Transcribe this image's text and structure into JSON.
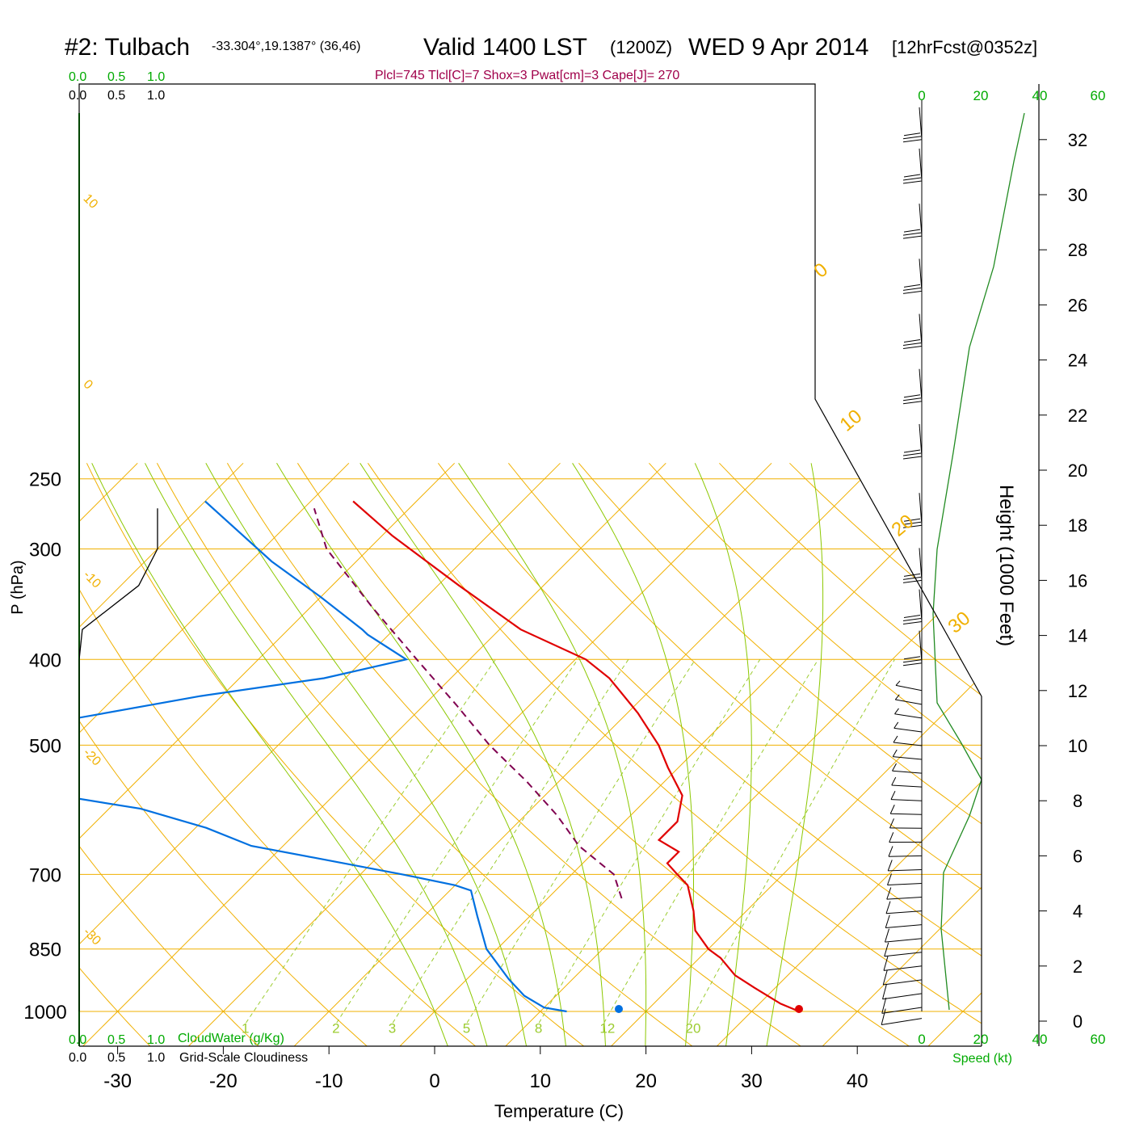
{
  "header": {
    "station": "#2: Tulbach",
    "coords": "-33.304°,19.1387° (36,46)",
    "valid": "Valid 1400 LST",
    "zulu": "(1200Z)",
    "date": "WED 9 Apr 2014",
    "forecast": "[12hrFcst@0352z]",
    "indices": "Plcl=745 Tlcl[C]=7 Shox=3 Pwat[cm]=3 Cape[J]= 270"
  },
  "axes": {
    "xlabel": "Temperature (C)",
    "ylabel": "P (hPa)",
    "height_label": "Height (1000 Feet)",
    "speed_label": "Speed (kt)"
  },
  "scale_labels": {
    "cloudwater_title": "CloudWater (g/Kg)",
    "cloudiness_title": "Grid-Scale Cloudiness",
    "scale_ticks": [
      "0.0",
      "0.5",
      "1.0"
    ]
  },
  "colors": {
    "isotherm": "#f0b000",
    "adiabat": "#8cc800",
    "mixing": "#9ccc30",
    "temperature": "#e00000",
    "dewpoint": "#0070e0",
    "parcel": "#800050",
    "cloud": "#00aa00",
    "indices_text": "#a0004a"
  },
  "chart_data": {
    "type": "line",
    "title": "#2: Tulbach Valid 1400 LST (1200Z) WED 9 Apr 2014 [12hrFcst@0352z]",
    "xlabel": "Temperature (C)",
    "ylabel": "P (hPa)",
    "x_ticks": [
      -30,
      -20,
      -10,
      0,
      10,
      20,
      30,
      40
    ],
    "y_ticks": [
      250,
      300,
      400,
      500,
      700,
      850,
      1000
    ],
    "y_scale": "log",
    "height_ticks_kft": [
      0,
      2,
      4,
      6,
      8,
      10,
      12,
      14,
      16,
      18,
      20,
      22,
      24,
      26,
      28,
      30,
      32
    ],
    "speed_ticks_kt": [
      0,
      20,
      40,
      60
    ],
    "isotherm_labels": [
      -30,
      -20,
      -10,
      0,
      10,
      20,
      30
    ],
    "isotherm_labels_right": [
      0,
      10,
      20,
      30
    ],
    "mixing_ratio_labels": [
      "1",
      "2",
      "3",
      "5",
      "8",
      "12",
      "20"
    ],
    "series": [
      {
        "name": "Temperature",
        "points": [
          [
            34.5,
            1000
          ],
          [
            32,
            980
          ],
          [
            28,
            940
          ],
          [
            25,
            910
          ],
          [
            22,
            870
          ],
          [
            20,
            850
          ],
          [
            17,
            810
          ],
          [
            15,
            770
          ],
          [
            12,
            720
          ],
          [
            10,
            700
          ],
          [
            8,
            680
          ],
          [
            8,
            660
          ],
          [
            5,
            640
          ],
          [
            5,
            610
          ],
          [
            3,
            570
          ],
          [
            -1,
            530
          ],
          [
            -4,
            500
          ],
          [
            -9,
            460
          ],
          [
            -15,
            420
          ],
          [
            -19,
            400
          ],
          [
            -28,
            370
          ],
          [
            -38,
            330
          ],
          [
            -49,
            290
          ],
          [
            -56,
            265
          ]
        ]
      },
      {
        "name": "Dewpoint",
        "points": [
          [
            12.5,
            1000
          ],
          [
            10,
            990
          ],
          [
            7,
            960
          ],
          [
            4,
            920
          ],
          [
            -1,
            850
          ],
          [
            -5,
            780
          ],
          [
            -8,
            730
          ],
          [
            -10,
            720
          ],
          [
            -16,
            700
          ],
          [
            -26,
            670
          ],
          [
            -33,
            650
          ],
          [
            -39,
            620
          ],
          [
            -47,
            590
          ],
          [
            -56,
            570
          ],
          [
            -62,
            550
          ],
          [
            -65,
            500
          ],
          [
            -63,
            470
          ],
          [
            -52,
            440
          ],
          [
            -42,
            420
          ],
          [
            -36,
            400
          ],
          [
            -42,
            375
          ],
          [
            -43,
            370
          ],
          [
            -50,
            340
          ],
          [
            -58,
            310
          ],
          [
            -70,
            265
          ]
        ]
      },
      {
        "name": "Parcel",
        "points": [
          [
            7,
            745
          ],
          [
            4,
            700
          ],
          [
            -2,
            650
          ],
          [
            -7,
            600
          ],
          [
            -13,
            550
          ],
          [
            -20,
            500
          ],
          [
            -27,
            450
          ],
          [
            -35,
            400
          ],
          [
            -44,
            350
          ],
          [
            -54,
            300
          ],
          [
            -59,
            270
          ]
        ]
      },
      {
        "name": "Cloudiness",
        "points": [
          [
            0,
            1000
          ],
          [
            0,
            400
          ],
          [
            0.02,
            370
          ],
          [
            0.38,
            330
          ],
          [
            0.5,
            300
          ],
          [
            0.5,
            270
          ]
        ]
      }
    ],
    "wind_barb_heights_kft": [
      0.1,
      0.5,
      1,
      1.5,
      2,
      2.5,
      3,
      3.5,
      4,
      4.5,
      5,
      5.5,
      6,
      6.5,
      7,
      7.5,
      8,
      8.5,
      9,
      9.5,
      10,
      10.5,
      11,
      11.5,
      12,
      13,
      14.5,
      16,
      18,
      20.5,
      22.5,
      24.5,
      26.5,
      28.5,
      30.5,
      32
    ]
  }
}
